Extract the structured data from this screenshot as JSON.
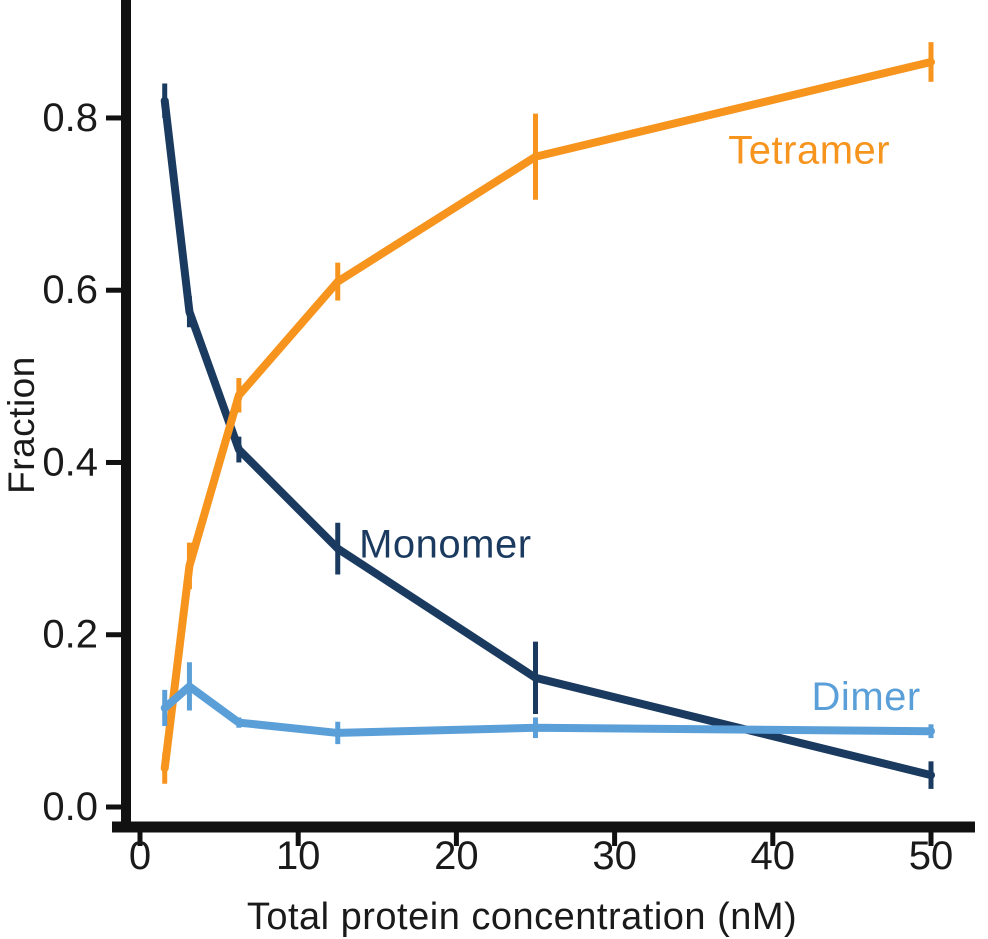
{
  "chart_data": {
    "type": "line",
    "title": "",
    "xlabel": "Total protein concentration (nM)",
    "ylabel": "Fraction",
    "x": [
      1.5625,
      3.125,
      6.25,
      12.5,
      25,
      50
    ],
    "xlim": [
      0,
      52.5
    ],
    "ylim": [
      0,
      0.937
    ],
    "grid": false,
    "legend_position": "inline-annotations",
    "x_ticks": [
      0,
      10,
      20,
      30,
      40,
      50
    ],
    "x_tick_labels": [
      "0",
      "10",
      "20",
      "30",
      "40",
      "50"
    ],
    "y_ticks": [
      0.0,
      0.2,
      0.4,
      0.6,
      0.8
    ],
    "y_tick_labels": [
      "0.0",
      "0.2",
      "0.4",
      "0.6",
      "0.8"
    ],
    "axis_color": "#111111",
    "series": [
      {
        "name": "Monomer",
        "color": "#1B3A5F",
        "values": [
          0.82,
          0.575,
          0.415,
          0.3,
          0.15,
          0.037
        ],
        "errors": [
          0.02,
          0.018,
          0.015,
          0.03,
          0.042,
          0.016
        ],
        "label": "Monomer",
        "label_pos": {
          "x": 19.3,
          "y": 0.305
        }
      },
      {
        "name": "Tetramer",
        "color": "#F6941E",
        "values": [
          0.045,
          0.28,
          0.478,
          0.61,
          0.755,
          0.865
        ],
        "errors": [
          0.018,
          0.027,
          0.02,
          0.022,
          0.05,
          0.023
        ],
        "label": "Tetramer",
        "label_pos": {
          "x": 42.3,
          "y": 0.762
        }
      },
      {
        "name": "Dimer",
        "color": "#5B9FD8",
        "values": [
          0.115,
          0.14,
          0.098,
          0.086,
          0.092,
          0.088
        ],
        "errors": [
          0.021,
          0.028,
          0.006,
          0.013,
          0.012,
          0.008
        ],
        "label": "Dimer",
        "label_pos": {
          "x": 45.9,
          "y": 0.128
        }
      }
    ]
  }
}
